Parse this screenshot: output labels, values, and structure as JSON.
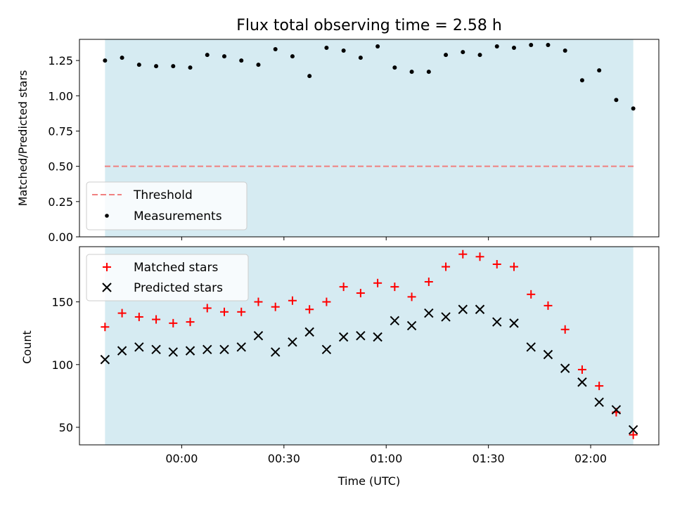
{
  "chart_data": [
    {
      "type": "scatter",
      "title": "Flux total observing time = 2.58 h",
      "xlabel": "",
      "ylabel": "Matched/Predicted stars",
      "ylim": [
        0.0,
        1.4
      ],
      "yticks": [
        "0.00",
        "0.25",
        "0.50",
        "0.75",
        "1.00",
        "1.25"
      ],
      "yticks_values": [
        0.0,
        0.25,
        0.5,
        0.75,
        1.0,
        1.25
      ],
      "xlim_minutes": [
        -30,
        140
      ],
      "xticks_minutes": [
        0,
        30,
        60,
        90,
        120
      ],
      "shaded_span_minutes": [
        -22.5,
        132.5
      ],
      "shaded_color": "#add8e6",
      "legend_position": "lower-left",
      "threshold": {
        "name": "Threshold",
        "value": 0.5,
        "color": "#f08080",
        "style": "dashed"
      },
      "series": [
        {
          "name": "Measurements",
          "color": "#000000",
          "marker": "dot",
          "x_minutes": [
            -22.5,
            -17.5,
            -12.5,
            -7.5,
            -2.5,
            2.5,
            7.5,
            12.5,
            17.5,
            22.5,
            27.5,
            32.5,
            37.5,
            42.5,
            47.5,
            52.5,
            57.5,
            62.5,
            67.5,
            72.5,
            77.5,
            82.5,
            87.5,
            92.5,
            97.5,
            102.5,
            107.5,
            112.5,
            117.5,
            122.5,
            127.5,
            132.5
          ],
          "x": [
            "23:37:30",
            "23:42:30",
            "23:47:30",
            "23:52:30",
            "23:57:30",
            "00:02:30",
            "00:07:30",
            "00:12:30",
            "00:17:30",
            "00:22:30",
            "00:27:30",
            "00:32:30",
            "00:37:30",
            "00:42:30",
            "00:47:30",
            "00:52:30",
            "00:57:30",
            "01:02:30",
            "01:07:30",
            "01:12:30",
            "01:17:30",
            "01:22:30",
            "01:27:30",
            "01:32:30",
            "01:37:30",
            "01:42:30",
            "01:47:30",
            "01:52:30",
            "01:57:30",
            "02:02:30",
            "02:07:30",
            "02:12:30"
          ],
          "y": [
            1.25,
            1.27,
            1.22,
            1.21,
            1.21,
            1.2,
            1.29,
            1.28,
            1.25,
            1.22,
            1.33,
            1.28,
            1.14,
            1.34,
            1.32,
            1.27,
            1.35,
            1.2,
            1.17,
            1.17,
            1.29,
            1.31,
            1.29,
            1.35,
            1.34,
            1.36,
            1.36,
            1.32,
            1.11,
            1.18,
            0.97,
            0.91
          ]
        }
      ]
    },
    {
      "type": "scatter",
      "title": "",
      "xlabel": "Time (UTC)",
      "ylabel": "Count",
      "ylim": [
        36,
        194
      ],
      "yticks": [
        "50",
        "100",
        "150"
      ],
      "yticks_values": [
        50,
        100,
        150
      ],
      "xlim_minutes": [
        -30,
        140
      ],
      "xticks_minutes": [
        0,
        30,
        60,
        90,
        120
      ],
      "xticks": [
        "00:00",
        "00:30",
        "01:00",
        "01:30",
        "02:00"
      ],
      "shaded_span_minutes": [
        -22.5,
        132.5
      ],
      "shaded_color": "#add8e6",
      "legend_position": "upper-left",
      "series": [
        {
          "name": "Matched stars",
          "color": "#ff0000",
          "marker": "plus",
          "x_minutes": [
            -22.5,
            -17.5,
            -12.5,
            -7.5,
            -2.5,
            2.5,
            7.5,
            12.5,
            17.5,
            22.5,
            27.5,
            32.5,
            37.5,
            42.5,
            47.5,
            52.5,
            57.5,
            62.5,
            67.5,
            72.5,
            77.5,
            82.5,
            87.5,
            92.5,
            97.5,
            102.5,
            107.5,
            112.5,
            117.5,
            122.5,
            127.5,
            132.5
          ],
          "y": [
            130,
            141,
            138,
            136,
            133,
            134,
            145,
            142,
            142,
            150,
            146,
            151,
            144,
            150,
            162,
            157,
            165,
            162,
            154,
            166,
            178,
            188,
            186,
            180,
            178,
            156,
            147,
            128,
            96,
            83,
            62,
            44
          ]
        },
        {
          "name": "Predicted stars",
          "color": "#000000",
          "marker": "x",
          "x_minutes": [
            -22.5,
            -17.5,
            -12.5,
            -7.5,
            -2.5,
            2.5,
            7.5,
            12.5,
            17.5,
            22.5,
            27.5,
            32.5,
            37.5,
            42.5,
            47.5,
            52.5,
            57.5,
            62.5,
            67.5,
            72.5,
            77.5,
            82.5,
            87.5,
            92.5,
            97.5,
            102.5,
            107.5,
            112.5,
            117.5,
            122.5,
            127.5,
            132.5
          ],
          "y": [
            104,
            111,
            114,
            112,
            110,
            111,
            112,
            112,
            114,
            123,
            110,
            118,
            126,
            112,
            122,
            123,
            122,
            135,
            131,
            141,
            138,
            144,
            144,
            134,
            133,
            114,
            108,
            97,
            86,
            70,
            64,
            48
          ]
        }
      ]
    }
  ]
}
